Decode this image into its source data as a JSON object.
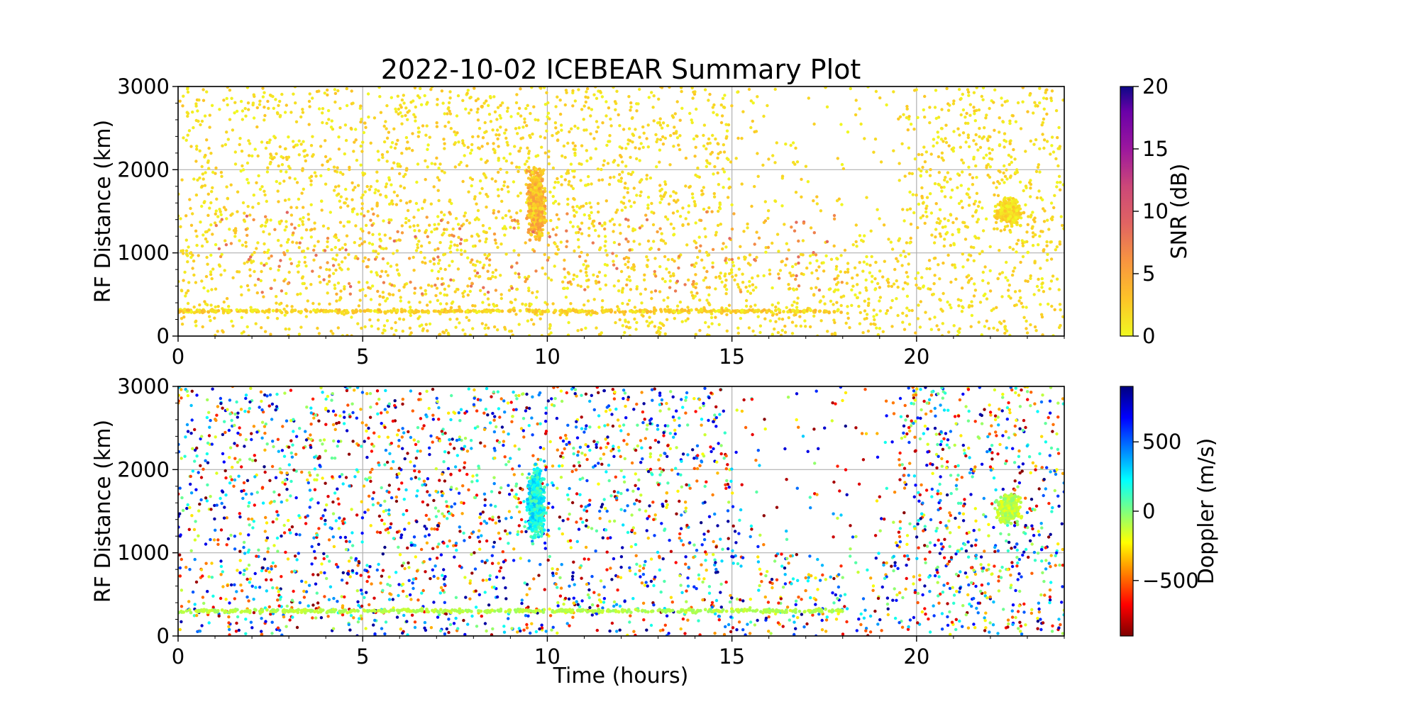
{
  "figure_title": "2022-10-02 ICEBEAR Summary Plot",
  "chart_data": [
    {
      "type": "scatter",
      "panel": "snr",
      "title": "2022-10-02 ICEBEAR Summary Plot",
      "xlabel": "",
      "ylabel": "RF Distance (km)",
      "xlim": [
        0,
        24
      ],
      "ylim": [
        0,
        3000
      ],
      "xticks": [
        "0",
        "5",
        "10",
        "15",
        "20"
      ],
      "yticks": [
        "0",
        "1000",
        "2000",
        "3000"
      ],
      "grid": true,
      "colorbar": {
        "label": "SNR (dB)",
        "range": [
          0,
          20
        ],
        "ticks": [
          "0",
          "5",
          "10",
          "15",
          "20"
        ],
        "colormap": "plasma_r"
      },
      "features": [
        {
          "name": "background-scatter",
          "x_range": [
            0,
            24
          ],
          "y_range": [
            0,
            3000
          ],
          "value_range": [
            0,
            3
          ]
        },
        {
          "name": "band-near-300km",
          "x_range": [
            0,
            18
          ],
          "y": 300,
          "value_range": [
            0,
            4
          ]
        },
        {
          "name": "cluster",
          "x": 9.7,
          "y_range": [
            1200,
            2000
          ],
          "value_range": [
            1,
            6
          ]
        },
        {
          "name": "cluster",
          "x": 22.5,
          "y_range": [
            1350,
            1650
          ],
          "value_range": [
            0,
            3
          ]
        },
        {
          "name": "scattered-high-snr",
          "x_range": [
            1,
            18
          ],
          "y_range": [
            500,
            1500
          ],
          "value_range": [
            4,
            9
          ]
        }
      ]
    },
    {
      "type": "scatter",
      "panel": "doppler",
      "xlabel": "Time (hours)",
      "ylabel": "RF Distance (km)",
      "xlim": [
        0,
        24
      ],
      "ylim": [
        0,
        3000
      ],
      "xticks": [
        "0",
        "5",
        "10",
        "15",
        "20"
      ],
      "yticks": [
        "0",
        "1000",
        "2000",
        "3000"
      ],
      "grid": true,
      "colorbar": {
        "label": "Doppler (m/s)",
        "range": [
          -900,
          900
        ],
        "ticks": [
          "−500",
          "0",
          "500"
        ],
        "tick_values": [
          -500,
          0,
          500
        ],
        "colormap": "jet_r"
      },
      "features": [
        {
          "name": "background-scatter",
          "x_range": [
            0,
            24
          ],
          "y_range": [
            0,
            3000
          ],
          "value_range": [
            -900,
            900
          ]
        },
        {
          "name": "band-near-300km",
          "x_range": [
            0,
            18
          ],
          "y": 300,
          "value_range": [
            -150,
            -50
          ]
        },
        {
          "name": "cluster",
          "x": 9.7,
          "y_range": [
            1200,
            2000
          ],
          "value_range": [
            50,
            350
          ]
        },
        {
          "name": "cluster",
          "x": 22.5,
          "y_range": [
            1350,
            1700
          ],
          "value_range": [
            -200,
            0
          ]
        }
      ]
    }
  ]
}
